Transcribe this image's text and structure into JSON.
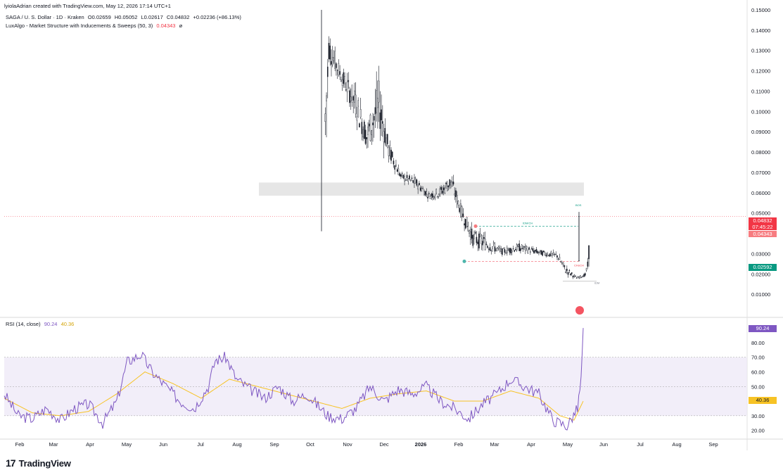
{
  "header": {
    "creator_line": "lyiolaAdrian created with TradingView.com, May 12, 2026 17:14 UTC+1",
    "symbol_line": "SAGA / U. S. Dollar · 1D · Kraken",
    "open": "O0.02659",
    "high": "H0.05052",
    "low": "L0.02617",
    "close": "C0.04832",
    "change": "+0.02236 (+86.13%)",
    "indicator_name": "LuxAlgo - Market Structure with Inducements & Sweeps (50, 3)",
    "indicator_value": "0.04343",
    "indicator_icon": "ø"
  },
  "rsi_header": {
    "name": "RSI (14, close)",
    "value_rsi": "90.24",
    "value_ma": "40.36"
  },
  "price_tags": {
    "close": "0.04832",
    "countdown": "07:45:22",
    "indicator": "0.04343",
    "support": "0.02592",
    "rsi": "90.24",
    "rsi_ma": "40.36"
  },
  "annotations": {
    "idm_upper": "IDM/CH",
    "idm_lower": "CHoCH",
    "bos": "BOS",
    "idm_small": "IDM"
  },
  "branding": {
    "logo": "17",
    "name": "TradingView"
  },
  "colors": {
    "candle": "#131722",
    "rsi_line": "#7e57c2",
    "rsi_ma": "#f7c325",
    "rsi_band": "#ede7f6",
    "close_tag": "#f23645",
    "support_tag": "#089981",
    "zone": "#e0e0e0"
  },
  "chart_data": [
    {
      "type": "candlestick",
      "title": "SAGA / U. S. Dollar · 1D · Kraken",
      "y_ticks": [
        "0.15000",
        "0.14000",
        "0.13000",
        "0.12000",
        "0.11000",
        "0.10000",
        "0.09000",
        "0.08000",
        "0.07000",
        "0.06000",
        "0.05000",
        "0.04000",
        "0.03000",
        "0.02000",
        "0.01000"
      ],
      "x_ticks": [
        "Feb",
        "Mar",
        "Apr",
        "May",
        "Jun",
        "Jul",
        "Aug",
        "Sep",
        "Oct",
        "Nov",
        "Dec",
        "2026",
        "Feb",
        "Mar",
        "Apr",
        "May",
        "Jun",
        "Jul",
        "Aug",
        "Sep"
      ],
      "ylim": [
        0.0,
        0.15
      ],
      "series": [
        {
          "values": [
            [
              "2025-10-07",
              0.15,
              0.041
            ],
            [
              "2025-10-10",
              0.145,
              0.118
            ],
            [
              "2025-10-20",
              0.125,
              0.11
            ],
            [
              "2025-11-01",
              0.118,
              0.09
            ],
            [
              "2025-11-10",
              0.1,
              0.075
            ],
            [
              "2025-11-20",
              0.127,
              0.08
            ],
            [
              "2025-11-28",
              0.09,
              0.072
            ],
            [
              "2025-12-08",
              0.072,
              0.064
            ],
            [
              "2025-12-20",
              0.07,
              0.06
            ],
            [
              "2025-12-31",
              0.062,
              0.055
            ],
            [
              "2026-01-10",
              0.066,
              0.055
            ],
            [
              "2026-01-18",
              0.073,
              0.058
            ],
            [
              "2026-01-26",
              0.058,
              0.045
            ],
            [
              "2026-02-05",
              0.045,
              0.03
            ],
            [
              "2026-02-14",
              0.043,
              0.028
            ],
            [
              "2026-03-01",
              0.034,
              0.028
            ],
            [
              "2026-03-15",
              0.037,
              0.029
            ],
            [
              "2026-04-01",
              0.033,
              0.028
            ],
            [
              "2026-04-15",
              0.032,
              0.026
            ],
            [
              "2026-04-22",
              0.026,
              0.018
            ],
            [
              "2026-05-01",
              0.019,
              0.017
            ],
            [
              "2026-05-08",
              0.021,
              0.018
            ],
            [
              "2026-05-10",
              0.028,
              0.02
            ],
            [
              "2026-05-12",
              0.05052,
              0.02617
            ]
          ]
        }
      ],
      "last_price": 0.04832,
      "levels": {
        "indicator": 0.04343,
        "support": 0.02592,
        "supply_zone": [
          0.0585,
          0.065
        ]
      }
    },
    {
      "type": "line",
      "title": "RSI (14, close)",
      "y_ticks": [
        "80.00",
        "70.00",
        "60.00",
        "50.00",
        "40.00",
        "30.00",
        "20.00"
      ],
      "ylim": [
        15,
        92
      ],
      "band": [
        30,
        70
      ],
      "series": [
        {
          "name": "RSI",
          "values": [
            [
              0,
              45
            ],
            [
              20,
              30
            ],
            [
              40,
              28
            ],
            [
              60,
              35
            ],
            [
              80,
              27
            ],
            [
              100,
              35
            ],
            [
              120,
              38
            ],
            [
              140,
              25
            ],
            [
              160,
              40
            ],
            [
              175,
              67
            ],
            [
              195,
              72
            ],
            [
              210,
              60
            ],
            [
              230,
              50
            ],
            [
              250,
              40
            ],
            [
              270,
              35
            ],
            [
              290,
              50
            ],
            [
              300,
              68
            ],
            [
              315,
              70
            ],
            [
              330,
              55
            ],
            [
              350,
              48
            ],
            [
              370,
              42
            ],
            [
              390,
              50
            ],
            [
              410,
              40
            ],
            [
              430,
              45
            ],
            [
              450,
              35
            ],
            [
              460,
              30
            ],
            [
              480,
              28
            ],
            [
              500,
              35
            ],
            [
              520,
              50
            ],
            [
              540,
              40
            ],
            [
              560,
              48
            ],
            [
              580,
              45
            ],
            [
              600,
              50
            ],
            [
              620,
              40
            ],
            [
              640,
              35
            ],
            [
              660,
              28
            ],
            [
              680,
              38
            ],
            [
              700,
              45
            ],
            [
              720,
              55
            ],
            [
              740,
              50
            ],
            [
              760,
              45
            ],
            [
              780,
              27
            ],
            [
              800,
              23
            ],
            [
              815,
              35
            ],
            [
              820,
              55
            ],
            [
              823,
              90
            ]
          ]
        },
        {
          "name": "RSI MA",
          "values": [
            [
              0,
              42
            ],
            [
              40,
              32
            ],
            [
              80,
              30
            ],
            [
              120,
              33
            ],
            [
              160,
              45
            ],
            [
              200,
              60
            ],
            [
              240,
              52
            ],
            [
              280,
              42
            ],
            [
              320,
              55
            ],
            [
              360,
              50
            ],
            [
              400,
              45
            ],
            [
              440,
              40
            ],
            [
              480,
              35
            ],
            [
              520,
              42
            ],
            [
              560,
              45
            ],
            [
              600,
              47
            ],
            [
              640,
              40
            ],
            [
              680,
              40
            ],
            [
              720,
              47
            ],
            [
              760,
              42
            ],
            [
              790,
              30
            ],
            [
              810,
              27
            ],
            [
              823,
              40
            ]
          ]
        }
      ]
    }
  ]
}
